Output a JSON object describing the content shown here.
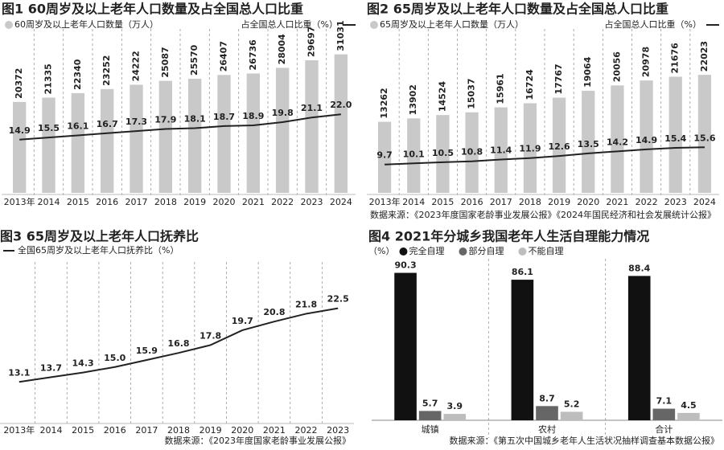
{
  "chart_data": [
    {
      "type": "bar",
      "title": "图1 60周岁及以上老年人口数量及占全国总人口比重",
      "categories": [
        "2013年",
        "2014",
        "2015",
        "2016",
        "2017",
        "2018",
        "2019",
        "2020",
        "2021",
        "2022",
        "2023",
        "2024"
      ],
      "series": [
        {
          "name": "60周岁及以上老年人口数量（万人）",
          "color": "#c9c9c9",
          "values": [
            20372,
            21335,
            22340,
            23252,
            24222,
            25087,
            25570,
            26407,
            26736,
            28004,
            29697,
            31031
          ]
        },
        {
          "name": "占全国总人口比重（%）",
          "color": "#222222",
          "axis": "y2",
          "values": [
            14.9,
            15.5,
            16.1,
            16.7,
            17.3,
            17.9,
            18.1,
            18.7,
            18.9,
            19.8,
            21.1,
            22.0
          ],
          "value_labels": [
            "14.9",
            "15.5",
            "16.1",
            "16.7",
            "17.3",
            "17.9",
            "18.1",
            "18.7",
            "18.9",
            "19.8",
            "21.1",
            "22.0"
          ]
        }
      ],
      "ylim": [
        0,
        36000
      ],
      "y2lim": [
        0,
        45
      ]
    },
    {
      "type": "bar",
      "title": "图2 65周岁及以上老年人口数量及占全国总人口比重",
      "categories": [
        "2013年",
        "2014",
        "2015",
        "2016",
        "2017",
        "2018",
        "2019",
        "2020",
        "2021",
        "2022",
        "2023",
        "2024"
      ],
      "series": [
        {
          "name": "65周岁及以上老年人口数量（万人）",
          "color": "#c9c9c9",
          "values": [
            13262,
            13902,
            14524,
            15037,
            15961,
            16724,
            17767,
            19064,
            20056,
            20978,
            21676,
            22023
          ]
        },
        {
          "name": "占全国总人口比重（%）",
          "color": "#222222",
          "axis": "y2",
          "values": [
            9.7,
            10.1,
            10.5,
            10.8,
            11.4,
            11.9,
            12.6,
            13.5,
            14.2,
            14.9,
            15.4,
            15.6
          ]
        }
      ],
      "ylim": [
        0,
        30000
      ],
      "y2lim": [
        0,
        55
      ],
      "source": "数据来源：《2023年度国家老龄事业发展公报》《2024年国民经济和社会发展统计公报》"
    },
    {
      "type": "line",
      "title": "图3 65周岁及以上老年人口抚养比",
      "categories": [
        "2013年",
        "2014",
        "2015",
        "2016",
        "2017",
        "2018",
        "2019",
        "2020",
        "2021",
        "2022",
        "2023"
      ],
      "series": [
        {
          "name": "全国65周岁及以上老年人口抚养比（%）",
          "color": "#222222",
          "values": [
            13.1,
            13.7,
            14.3,
            15.0,
            15.9,
            16.8,
            17.8,
            19.7,
            20.8,
            21.8,
            22.5
          ],
          "value_labels": [
            "13.1",
            "13.7",
            "14.3",
            "15.0",
            "15.9",
            "16.8",
            "17.8",
            "19.7",
            "20.8",
            "21.8",
            "22.5"
          ]
        }
      ],
      "ylim": [
        8,
        28
      ],
      "source": "数据来源：《2023年度国家老龄事业发展公报》"
    },
    {
      "type": "bar",
      "title": "图4 2021年分城乡我国老年人生活自理能力情况",
      "unit": "（%）",
      "categories": [
        "城镇",
        "农村",
        "合计"
      ],
      "series": [
        {
          "name": "完全自理",
          "color": "#111111",
          "values": [
            90.3,
            86.1,
            88.4
          ]
        },
        {
          "name": "部分自理",
          "color": "#666666",
          "values": [
            5.7,
            8.7,
            7.1
          ]
        },
        {
          "name": "不能自理",
          "color": "#bdbdbd",
          "values": [
            3.9,
            5.2,
            4.5
          ]
        }
      ],
      "ylim": [
        0,
        95
      ],
      "source": "数据来源：《第五次中国城乡老年人生活状况抽样调查基本数据公报》"
    }
  ]
}
